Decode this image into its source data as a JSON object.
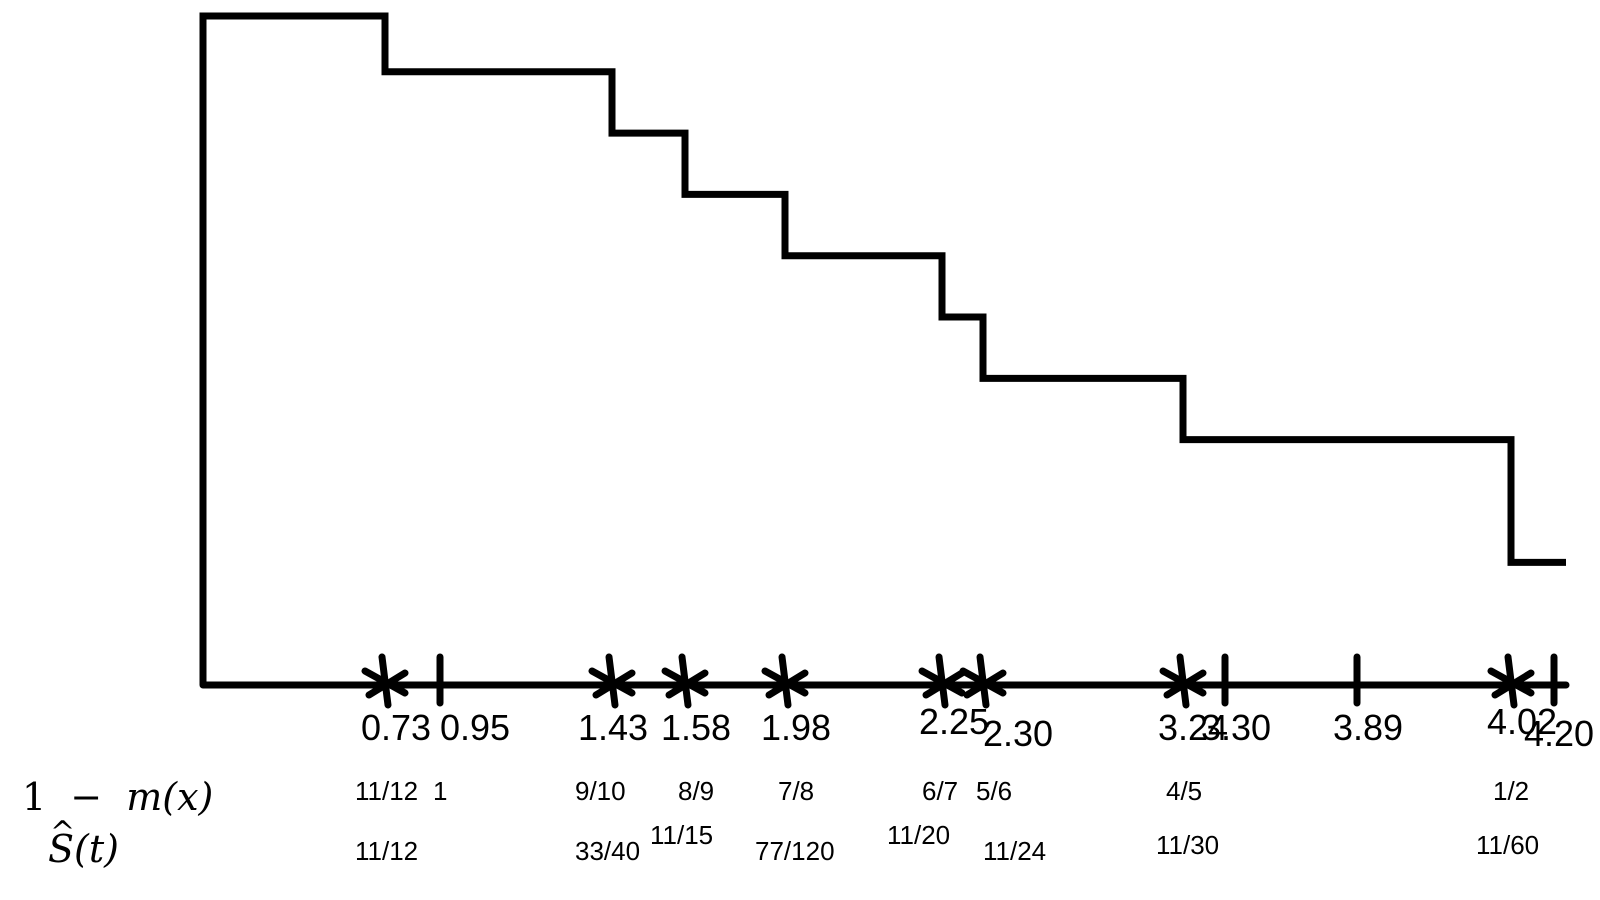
{
  "diagram": {
    "title": "",
    "colors": {
      "ink": "#000000",
      "background": "#ffffff"
    },
    "events": [
      {
        "time": "0.73",
        "censored": false,
        "m_value": "11/12",
        "s_value": "11/12",
        "s_fraction": 0.9167
      },
      {
        "time": "0.95",
        "censored": true,
        "m_value": "1",
        "s_value": "",
        "s_fraction": 0.9167
      },
      {
        "time": "1.43",
        "censored": false,
        "m_value": "9/10",
        "s_value": "33/40",
        "s_fraction": 0.825
      },
      {
        "time": "1.58",
        "censored": false,
        "m_value": "8/9",
        "s_value": "11/15",
        "s_fraction": 0.7333
      },
      {
        "time": "1.98",
        "censored": false,
        "m_value": "7/8",
        "s_value": "77/120",
        "s_fraction": 0.6417
      },
      {
        "time": "2.25",
        "censored": false,
        "m_value": "6/7",
        "s_value": "11/20",
        "s_fraction": 0.55
      },
      {
        "time": "2.30",
        "censored": false,
        "m_value": "5/6",
        "s_value": "11/24",
        "s_fraction": 0.4583
      },
      {
        "time": "3.24",
        "censored": false,
        "m_value": "4/5",
        "s_value": "11/30",
        "s_fraction": 0.3667
      },
      {
        "time": "3.30",
        "censored": true,
        "m_value": "",
        "s_value": "",
        "s_fraction": 0.3667
      },
      {
        "time": "3.89",
        "censored": true,
        "m_value": "",
        "s_value": "",
        "s_fraction": 0.3667
      },
      {
        "time": "4.02",
        "censored": false,
        "m_value": "1/2",
        "s_value": "11/60",
        "s_fraction": 0.1833
      },
      {
        "time": "4.20",
        "censored": true,
        "m_value": "",
        "s_value": "",
        "s_fraction": 0.1833
      }
    ],
    "rows": {
      "m_row": {
        "prefix": "1",
        "operator": "−",
        "body": "m(x)"
      },
      "s_row": {
        "hat": "^",
        "body": "S(t)"
      }
    }
  }
}
